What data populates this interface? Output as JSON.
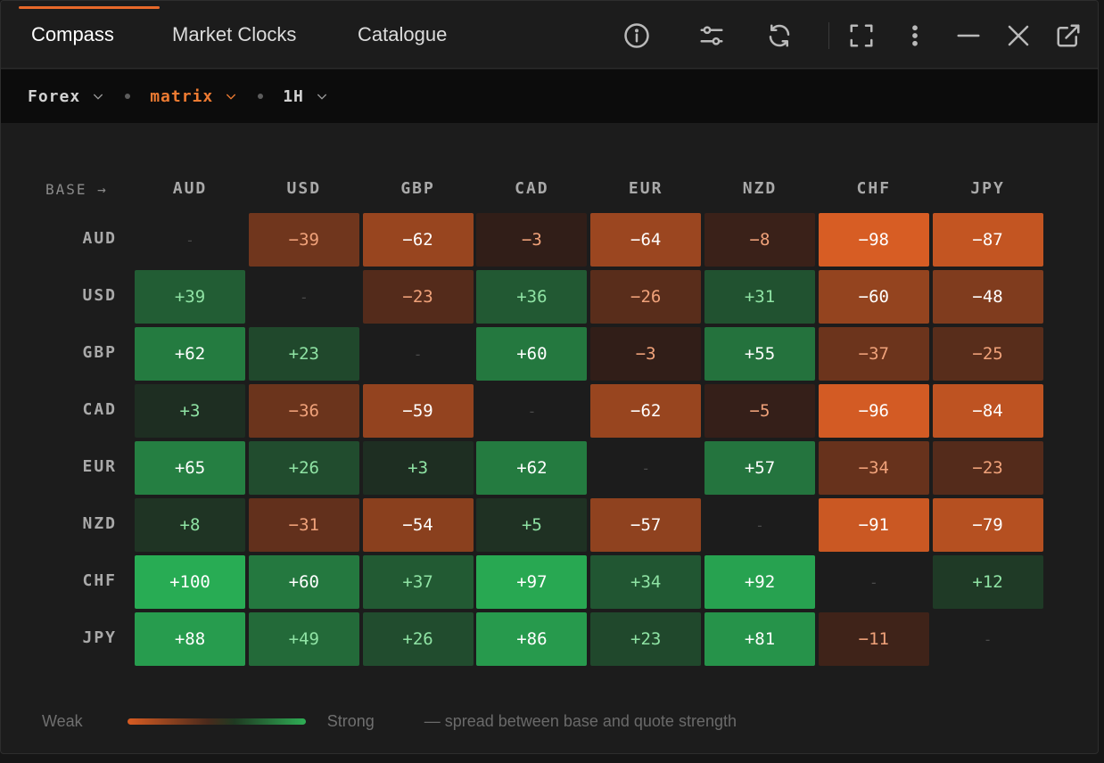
{
  "tabs": [
    {
      "label": "Compass",
      "active": true
    },
    {
      "label": "Market Clocks",
      "active": false
    },
    {
      "label": "Catalogue",
      "active": false
    }
  ],
  "toolbar_icons": [
    "info-icon",
    "sliders-icon",
    "refresh-icon",
    "expand-icon",
    "more-vertical-icon",
    "minimize-icon",
    "close-icon",
    "popout-icon"
  ],
  "filters": {
    "market": "Forex",
    "view": "matrix",
    "timeframe": "1H"
  },
  "matrix": {
    "corner_label": "BASE →",
    "empty_symbol": "-",
    "columns": [
      "AUD",
      "USD",
      "GBP",
      "CAD",
      "EUR",
      "NZD",
      "CHF",
      "JPY"
    ],
    "rows": [
      {
        "label": "AUD",
        "cells": [
          "-",
          "−39",
          "−62",
          "−3",
          "−64",
          "−8",
          "−98",
          "−87"
        ],
        "values": [
          null,
          -39,
          -62,
          -3,
          -64,
          -8,
          -98,
          -87
        ]
      },
      {
        "label": "USD",
        "cells": [
          "+39",
          "-",
          "−23",
          "+36",
          "−26",
          "+31",
          "−60",
          "−48"
        ],
        "values": [
          39,
          null,
          -23,
          36,
          -26,
          31,
          -60,
          -48
        ]
      },
      {
        "label": "GBP",
        "cells": [
          "+62",
          "+23",
          "-",
          "+60",
          "−3",
          "+55",
          "−37",
          "−25"
        ],
        "values": [
          62,
          23,
          null,
          60,
          -3,
          55,
          -37,
          -25
        ]
      },
      {
        "label": "CAD",
        "cells": [
          "+3",
          "−36",
          "−59",
          "-",
          "−62",
          "−5",
          "−96",
          "−84"
        ],
        "values": [
          3,
          -36,
          -59,
          null,
          -62,
          -5,
          -96,
          -84
        ]
      },
      {
        "label": "EUR",
        "cells": [
          "+65",
          "+26",
          "+3",
          "+62",
          "-",
          "+57",
          "−34",
          "−23"
        ],
        "values": [
          65,
          26,
          3,
          62,
          null,
          57,
          -34,
          -23
        ]
      },
      {
        "label": "NZD",
        "cells": [
          "+8",
          "−31",
          "−54",
          "+5",
          "−57",
          "-",
          "−91",
          "−79"
        ],
        "values": [
          8,
          -31,
          -54,
          5,
          -57,
          null,
          -91,
          -79
        ]
      },
      {
        "label": "CHF",
        "cells": [
          "+100",
          "+60",
          "+37",
          "+97",
          "+34",
          "+92",
          "-",
          "+12"
        ],
        "values": [
          100,
          60,
          37,
          97,
          34,
          92,
          null,
          12
        ]
      },
      {
        "label": "JPY",
        "cells": [
          "+88",
          "+49",
          "+26",
          "+86",
          "+23",
          "+81",
          "−11",
          "-"
        ],
        "values": [
          88,
          49,
          26,
          86,
          23,
          81,
          -11,
          null
        ]
      }
    ]
  },
  "legend": {
    "weak_label": "Weak",
    "strong_label": "Strong",
    "note": "— spread between base and quote strength"
  },
  "colors": {
    "accent": "#e8692a",
    "positive": "#2fae55",
    "negative": "#d85c22"
  }
}
